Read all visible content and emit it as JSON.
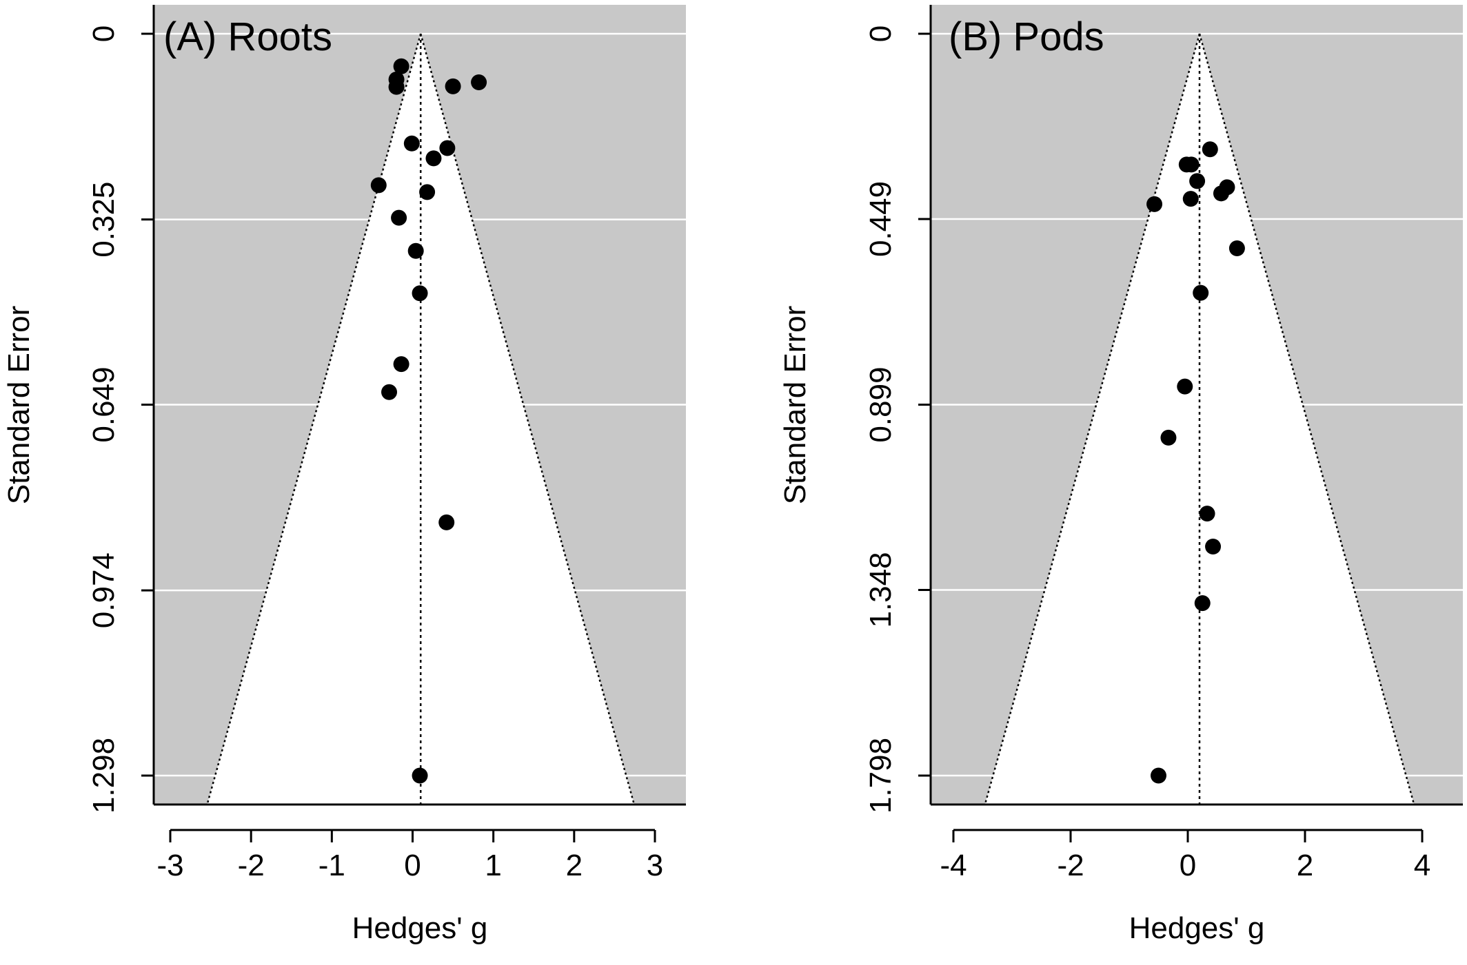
{
  "chart_data": [
    {
      "type": "scatter",
      "title": "(A) Roots",
      "xlabel": "Hedges' g",
      "ylabel": "Standard Error",
      "xlim": [
        -3.2,
        3.4
      ],
      "ylim": [
        1.35,
        0
      ],
      "x_ticks": [
        "-3",
        "-2",
        "-1",
        "0",
        "1",
        "2",
        "3"
      ],
      "x_tick_values": [
        -3,
        -2,
        -1,
        0,
        1,
        2,
        3
      ],
      "y_ticks": [
        "0",
        "0.325",
        "0.649",
        "0.974",
        "1.298"
      ],
      "y_tick_values": [
        0,
        0.325,
        0.649,
        0.974,
        1.298
      ],
      "grid": "horizontal",
      "funnel_center": 0.1,
      "funnel_ci_multiplier": 1.96,
      "background_color": "#c8c8c8",
      "funnel_color": "#ffffff",
      "point_color": "#000000",
      "points": [
        {
          "x": -0.14,
          "y": 0.057
        },
        {
          "x": -0.2,
          "y": 0.08
        },
        {
          "x": -0.2,
          "y": 0.093
        },
        {
          "x": 0.5,
          "y": 0.092
        },
        {
          "x": 0.82,
          "y": 0.085
        },
        {
          "x": -0.01,
          "y": 0.192
        },
        {
          "x": 0.43,
          "y": 0.2
        },
        {
          "x": 0.26,
          "y": 0.218
        },
        {
          "x": -0.42,
          "y": 0.265
        },
        {
          "x": 0.18,
          "y": 0.277
        },
        {
          "x": -0.17,
          "y": 0.322
        },
        {
          "x": 0.04,
          "y": 0.38
        },
        {
          "x": 0.09,
          "y": 0.454
        },
        {
          "x": -0.14,
          "y": 0.578
        },
        {
          "x": -0.29,
          "y": 0.627
        },
        {
          "x": 0.42,
          "y": 0.855
        },
        {
          "x": 0.09,
          "y": 1.298
        }
      ]
    },
    {
      "type": "scatter",
      "title": "(B) Pods",
      "xlabel": "Hedges' g",
      "ylabel": "Standard Error",
      "xlim": [
        -4.4,
        4.8
      ],
      "ylim": [
        1.87,
        0
      ],
      "x_ticks": [
        "-4",
        "-2",
        "0",
        "2",
        "4"
      ],
      "x_tick_values": [
        -4,
        -2,
        0,
        2,
        4
      ],
      "y_ticks": [
        "0",
        "0.449",
        "0.899",
        "1.348",
        "1.798"
      ],
      "y_tick_values": [
        0,
        0.449,
        0.899,
        1.348,
        1.798
      ],
      "grid": "horizontal",
      "funnel_center": 0.2,
      "funnel_ci_multiplier": 1.96,
      "background_color": "#c8c8c8",
      "funnel_color": "#ffffff",
      "point_color": "#000000",
      "points": [
        {
          "x": 0.38,
          "y": 0.28
        },
        {
          "x": -0.02,
          "y": 0.317
        },
        {
          "x": 0.06,
          "y": 0.317
        },
        {
          "x": 0.16,
          "y": 0.357
        },
        {
          "x": 0.67,
          "y": 0.372
        },
        {
          "x": 0.57,
          "y": 0.387
        },
        {
          "x": 0.05,
          "y": 0.4
        },
        {
          "x": -0.57,
          "y": 0.413
        },
        {
          "x": 0.84,
          "y": 0.52
        },
        {
          "x": 0.22,
          "y": 0.628
        },
        {
          "x": -0.05,
          "y": 0.855
        },
        {
          "x": -0.33,
          "y": 0.979
        },
        {
          "x": 0.33,
          "y": 1.163
        },
        {
          "x": 0.43,
          "y": 1.243
        },
        {
          "x": 0.25,
          "y": 1.38
        },
        {
          "x": -0.5,
          "y": 1.798
        }
      ]
    }
  ]
}
